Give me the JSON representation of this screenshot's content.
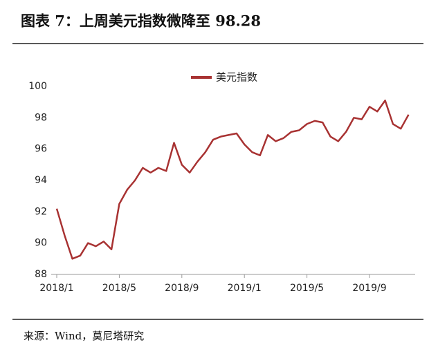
{
  "chart_data": {
    "type": "line",
    "title": "图表 7：上周美元指数微降至 98.28",
    "source": "来源：Wind，莫尼塔研究",
    "categories": [
      "2018/1",
      null,
      null,
      null,
      null,
      null,
      null,
      null,
      "2018/5",
      null,
      null,
      null,
      null,
      null,
      null,
      null,
      "2018/9",
      null,
      null,
      null,
      null,
      null,
      null,
      null,
      "2019/1",
      null,
      null,
      null,
      null,
      null,
      null,
      null,
      "2019/5",
      null,
      null,
      null,
      null,
      null,
      null,
      null,
      "2019/9",
      null,
      null,
      null,
      null,
      null
    ],
    "series": [
      {
        "name": "美元指数",
        "color": "#a83232",
        "values": [
          92.2,
          90.5,
          89.0,
          89.2,
          90.0,
          89.8,
          90.1,
          89.6,
          92.5,
          93.4,
          94.0,
          94.8,
          94.5,
          94.8,
          94.6,
          96.4,
          95.0,
          94.5,
          95.2,
          95.8,
          96.6,
          96.8,
          96.9,
          97.0,
          96.3,
          95.8,
          95.6,
          96.9,
          96.5,
          96.7,
          97.1,
          97.2,
          97.6,
          97.8,
          97.7,
          96.8,
          96.5,
          97.1,
          98.0,
          97.9,
          98.7,
          98.4,
          99.1,
          97.6,
          97.3,
          98.2
        ]
      }
    ],
    "ylim": [
      88,
      100
    ],
    "yticks": [
      88,
      90,
      92,
      94,
      96,
      98,
      100
    ],
    "grid": false,
    "legend": "top"
  }
}
